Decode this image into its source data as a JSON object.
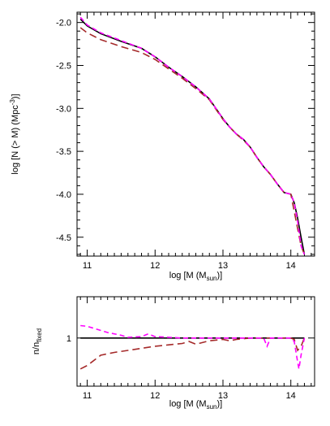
{
  "colors": {
    "series_fixed": "#000000",
    "series_darkred": "#a52a2a",
    "series_magenta": "#ff00ff"
  },
  "chart_data": [
    {
      "type": "line",
      "xlabel": "log [M (M",
      "xlabel_sub": "sun",
      "xlabel_suffix": ")]",
      "ylabel": "log [N (> M) (Mpc",
      "ylabel_sup": "-3",
      "ylabel_suffix": ")]",
      "xlim": [
        10.85,
        14.35
      ],
      "ylim": [
        -4.72,
        -1.88
      ],
      "xticks": [
        11,
        12,
        13,
        14
      ],
      "yticks": [
        -2.0,
        -2.5,
        -3.0,
        -3.5,
        -4.0,
        -4.5
      ],
      "xtick_labels": [
        "11",
        "12",
        "13",
        "14"
      ],
      "ytick_labels": [
        "-2.0",
        "-2.5",
        "-3.0",
        "-3.5",
        "-4.0",
        "-4.5"
      ],
      "grid": false,
      "series": [
        {
          "color": "#000000",
          "dash": "solid",
          "x": [
            10.9,
            11.0,
            11.2,
            11.5,
            11.8,
            12.0,
            12.2,
            12.4,
            12.6,
            12.8,
            13.0,
            13.1,
            13.2,
            13.3,
            13.4,
            13.5,
            13.6,
            13.7,
            13.8,
            13.9,
            14.0,
            14.05,
            14.1,
            14.15,
            14.2
          ],
          "y": [
            -1.96,
            -2.04,
            -2.13,
            -2.22,
            -2.3,
            -2.4,
            -2.52,
            -2.63,
            -2.75,
            -2.89,
            -3.12,
            -3.22,
            -3.3,
            -3.36,
            -3.45,
            -3.57,
            -3.68,
            -3.77,
            -3.88,
            -3.98,
            -4.0,
            -4.1,
            -4.28,
            -4.5,
            -4.7
          ]
        },
        {
          "color": "#a52a2a",
          "dash": "long-dash",
          "x": [
            10.9,
            11.0,
            11.2,
            11.5,
            11.8,
            12.0,
            12.2,
            12.4,
            12.6,
            12.8,
            13.0,
            13.1,
            13.2,
            13.3,
            13.4,
            13.5,
            13.6,
            13.7,
            13.8,
            13.9,
            14.0,
            14.05,
            14.1,
            14.15,
            14.2
          ],
          "y": [
            -2.06,
            -2.12,
            -2.2,
            -2.28,
            -2.35,
            -2.43,
            -2.54,
            -2.65,
            -2.77,
            -2.9,
            -3.13,
            -3.22,
            -3.3,
            -3.37,
            -3.45,
            -3.57,
            -3.68,
            -3.77,
            -3.88,
            -3.98,
            -4.0,
            -4.2,
            -4.4,
            -4.6,
            -4.7
          ]
        },
        {
          "color": "#ff00ff",
          "dash": "short-dash",
          "x": [
            10.9,
            11.0,
            11.2,
            11.5,
            11.8,
            12.0,
            12.2,
            12.4,
            12.6,
            12.8,
            13.0,
            13.1,
            13.2,
            13.3,
            13.4,
            13.5,
            13.6,
            13.7,
            13.8,
            13.9,
            14.0,
            14.05,
            14.1,
            14.15,
            14.2
          ],
          "y": [
            -1.94,
            -2.03,
            -2.12,
            -2.21,
            -2.3,
            -2.4,
            -2.52,
            -2.63,
            -2.75,
            -2.89,
            -3.12,
            -3.22,
            -3.3,
            -3.36,
            -3.45,
            -3.57,
            -3.68,
            -3.77,
            -3.88,
            -3.98,
            -4.0,
            -4.1,
            -4.32,
            -4.6,
            -4.7
          ]
        }
      ]
    },
    {
      "type": "line",
      "xlabel": "log [M (M",
      "xlabel_sub": "sun",
      "xlabel_suffix": ")]",
      "ylabel": "n/n",
      "ylabel_sub": "fixed",
      "xlim": [
        10.85,
        14.35
      ],
      "ylim": [
        0.3,
        1.6
      ],
      "xticks": [
        11,
        12,
        13,
        14
      ],
      "yticks": [
        1
      ],
      "xtick_labels": [
        "11",
        "12",
        "13",
        "14"
      ],
      "ytick_labels": [
        "1"
      ],
      "grid": false,
      "series": [
        {
          "color": "#000000",
          "dash": "solid",
          "x": [
            10.9,
            14.2
          ],
          "y": [
            1.0,
            1.0
          ]
        },
        {
          "color": "#a52a2a",
          "dash": "long-dash",
          "x": [
            10.9,
            11.0,
            11.2,
            11.4,
            11.6,
            11.8,
            12.0,
            12.2,
            12.4,
            12.5,
            12.6,
            12.8,
            13.0,
            13.1,
            13.2,
            13.3,
            13.4,
            13.6,
            13.7,
            13.8,
            14.0,
            14.05,
            14.1,
            14.15,
            14.2
          ],
          "y": [
            0.55,
            0.6,
            0.75,
            0.79,
            0.82,
            0.85,
            0.88,
            0.9,
            0.92,
            0.95,
            0.91,
            0.96,
            0.98,
            0.96,
            0.98,
            0.99,
            1.0,
            1.0,
            1.0,
            1.0,
            1.0,
            0.98,
            0.82,
            0.88,
            1.0
          ]
        },
        {
          "color": "#ff00ff",
          "dash": "short-dash",
          "x": [
            10.9,
            11.0,
            11.1,
            11.3,
            11.5,
            11.6,
            11.8,
            11.9,
            12.0,
            12.2,
            12.4,
            12.6,
            12.8,
            13.0,
            13.2,
            13.4,
            13.6,
            13.65,
            13.7,
            13.8,
            14.0,
            14.05,
            14.1,
            14.12,
            14.15,
            14.2
          ],
          "y": [
            1.18,
            1.17,
            1.14,
            1.08,
            1.04,
            1.01,
            1.02,
            1.06,
            1.02,
            1.01,
            1.0,
            1.0,
            1.0,
            1.0,
            1.0,
            1.0,
            1.0,
            0.88,
            1.0,
            1.0,
            1.0,
            0.95,
            0.65,
            0.55,
            0.75,
            1.0
          ]
        }
      ]
    }
  ]
}
